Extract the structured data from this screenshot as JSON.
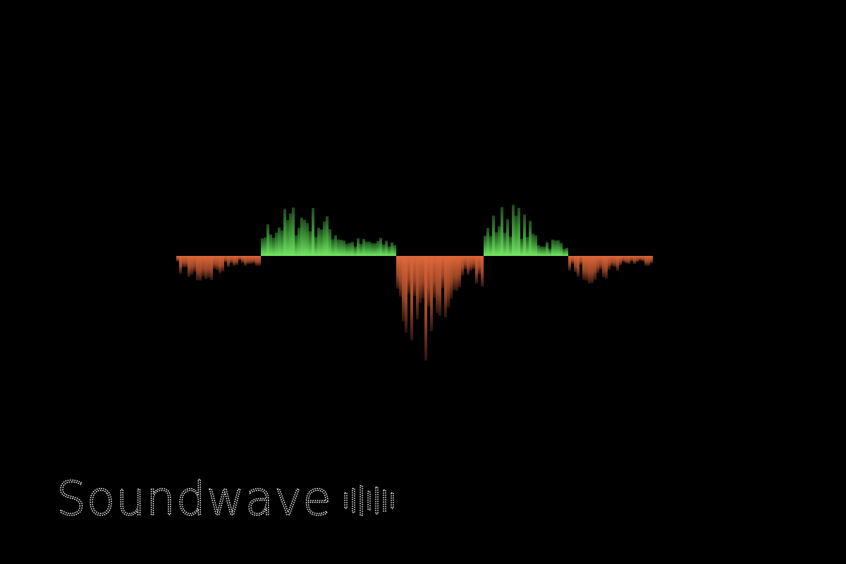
{
  "title": "Soundwave"
}
